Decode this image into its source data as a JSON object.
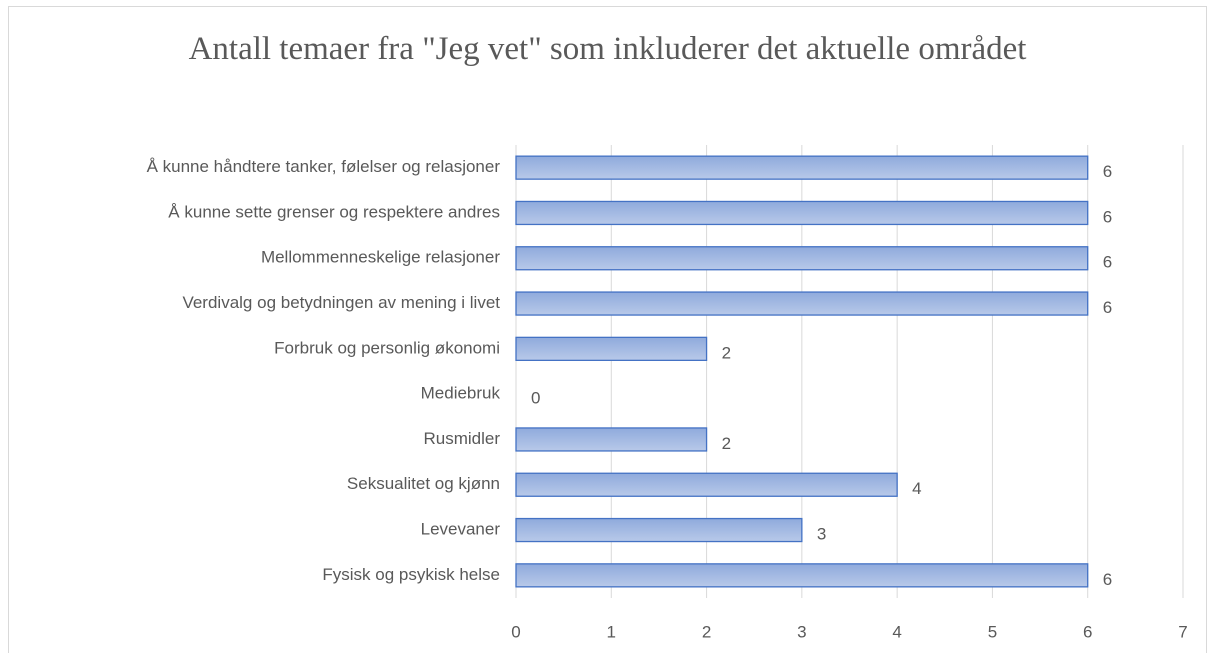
{
  "chart_data": {
    "type": "barh",
    "title": "Antall temaer fra \"Jeg vet\" som inkluderer det aktuelle området",
    "categories": [
      "Å kunne håndtere tanker, følelser og relasjoner",
      "Å kunne sette grenser og respektere andres",
      "Mellommenneskelige relasjoner",
      "Verdivalg og betydningen av mening i livet",
      "Forbruk og personlig økonomi",
      "Mediebruk",
      "Rusmidler",
      "Seksualitet og kjønn",
      "Levevaner",
      "Fysisk og psykisk helse"
    ],
    "values": [
      6,
      6,
      6,
      6,
      2,
      0,
      2,
      4,
      3,
      6
    ],
    "color": "#4472c4",
    "xlim": [
      0,
      7
    ],
    "xticks": [
      0,
      1,
      2,
      3,
      4,
      5,
      6,
      7
    ],
    "grid": true
  }
}
